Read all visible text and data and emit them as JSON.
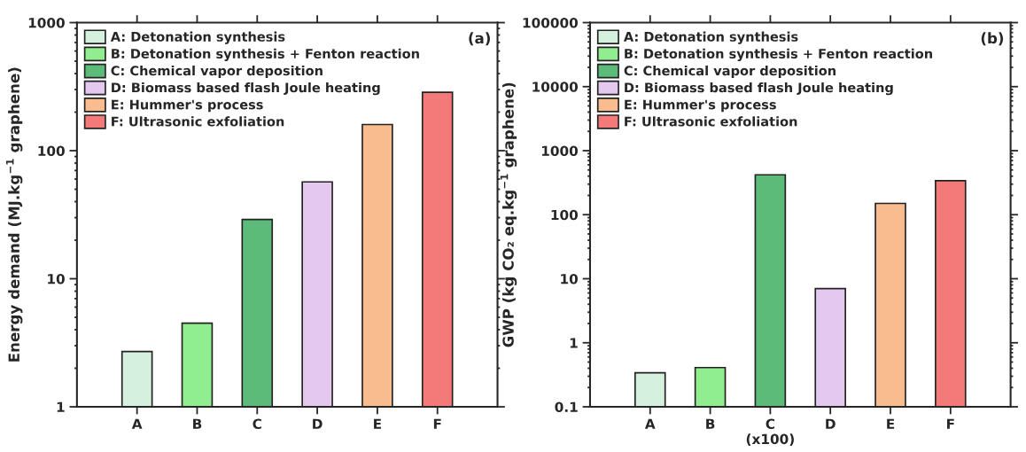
{
  "chart_data": [
    {
      "type": "bar",
      "categories": [
        "A",
        "B",
        "C",
        "D",
        "E",
        "F"
      ],
      "ylabel": "Energy demand (MJ.kg$^{−1}$ graphene)",
      "log": "y",
      "ylim": [
        1,
        1000
      ],
      "yticks": [
        1,
        10,
        100,
        1000
      ],
      "legend": "top left",
      "annotations": [
        "(a)"
      ],
      "series": [
        {
          "name": "A: Detonation synthesis",
          "color": "#d5f0dc",
          "values": [
            2.7,
            null,
            null,
            null,
            null,
            null
          ]
        },
        {
          "name": "B: Detonation synthesis + Fenton reaction",
          "color": "#90ee90",
          "values": [
            null,
            4.5,
            null,
            null,
            null,
            null
          ]
        },
        {
          "name": "C: Chemical vapor deposition",
          "color": "#5dbb7a",
          "values": [
            null,
            null,
            29,
            null,
            null,
            null
          ]
        },
        {
          "name": "D: Biomass based flash Joule heating",
          "color": "#e5c8f0",
          "values": [
            null,
            null,
            null,
            57,
            null,
            null
          ]
        },
        {
          "name": "E: Hummer's process",
          "color": "#f9bc8f",
          "values": [
            null,
            null,
            null,
            null,
            160,
            null
          ]
        },
        {
          "name": "F: Ultrasonic exfoliation",
          "color": "#f47a7a",
          "values": [
            null,
            null,
            null,
            null,
            null,
            286
          ]
        }
      ]
    },
    {
      "type": "bar",
      "categories": [
        "A",
        "B",
        "C\n(x100)",
        "D",
        "E",
        "F"
      ],
      "ylabel": "GWP (kg CO₂ eq.kg$^{−1}$ graphene)",
      "log": "y",
      "ylim": [
        0.1,
        100000
      ],
      "yticks": [
        0.1,
        1,
        10,
        100,
        1000,
        10000,
        100000
      ],
      "legend": "top left",
      "annotations": [
        "(b)"
      ],
      "series": [
        {
          "name": "A: Detonation synthesis",
          "color": "#d5f0dc",
          "values": [
            0.34,
            null,
            null,
            null,
            null,
            null
          ]
        },
        {
          "name": "B: Detonation synthesis + Fenton reaction",
          "color": "#90ee90",
          "values": [
            null,
            0.41,
            null,
            null,
            null,
            null
          ]
        },
        {
          "name": "C: Chemical vapor deposition",
          "color": "#5dbb7a",
          "values": [
            null,
            null,
            420,
            null,
            null,
            null
          ]
        },
        {
          "name": "D: Biomass based flash Joule heating",
          "color": "#e5c8f0",
          "values": [
            null,
            null,
            null,
            7.0,
            null,
            null
          ]
        },
        {
          "name": "E: Hummer's process",
          "color": "#f9bc8f",
          "values": [
            null,
            null,
            null,
            null,
            150,
            null
          ]
        },
        {
          "name": "F: Ultrasonic exfoliation",
          "color": "#f47a7a",
          "values": [
            null,
            null,
            null,
            null,
            null,
            340
          ]
        }
      ]
    }
  ]
}
